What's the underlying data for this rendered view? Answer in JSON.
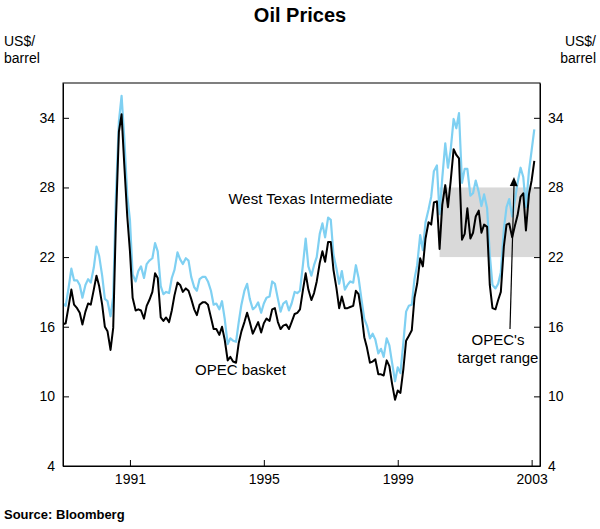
{
  "chart_data": {
    "type": "line",
    "title": "Oil Prices",
    "source": "Source: Bloomberg",
    "y_label": [
      "US$/",
      "barrel"
    ],
    "y2_label": [
      "US$/",
      "barrel"
    ],
    "grid": false,
    "xlim": [
      1989,
      2003.25
    ],
    "xticks": [
      1991,
      1995,
      1999,
      2003
    ],
    "ylim": [
      4,
      37
    ],
    "yticks": [
      4,
      10,
      16,
      22,
      28,
      34
    ],
    "y2lim": [
      4,
      37
    ],
    "y2ticks": [
      4,
      10,
      16,
      22,
      28,
      34
    ],
    "x": [
      1989.0,
      1989.08,
      1989.17,
      1989.25,
      1989.33,
      1989.42,
      1989.5,
      1989.58,
      1989.67,
      1989.75,
      1989.83,
      1989.92,
      1990.0,
      1990.08,
      1990.17,
      1990.25,
      1990.33,
      1990.42,
      1990.5,
      1990.58,
      1990.67,
      1990.75,
      1990.83,
      1990.92,
      1991.0,
      1991.08,
      1991.17,
      1991.25,
      1991.33,
      1991.42,
      1991.5,
      1991.58,
      1991.67,
      1991.75,
      1991.83,
      1991.92,
      1992.0,
      1992.08,
      1992.17,
      1992.25,
      1992.33,
      1992.42,
      1992.5,
      1992.58,
      1992.67,
      1992.75,
      1992.83,
      1992.92,
      1993.0,
      1993.08,
      1993.17,
      1993.25,
      1993.33,
      1993.42,
      1993.5,
      1993.58,
      1993.67,
      1993.75,
      1993.83,
      1993.92,
      1994.0,
      1994.08,
      1994.17,
      1994.25,
      1994.33,
      1994.42,
      1994.5,
      1994.58,
      1994.67,
      1994.75,
      1994.83,
      1994.92,
      1995.0,
      1995.08,
      1995.17,
      1995.25,
      1995.33,
      1995.42,
      1995.5,
      1995.58,
      1995.67,
      1995.75,
      1995.83,
      1995.92,
      1996.0,
      1996.08,
      1996.17,
      1996.25,
      1996.33,
      1996.42,
      1996.5,
      1996.58,
      1996.67,
      1996.75,
      1996.83,
      1996.92,
      1997.0,
      1997.08,
      1997.17,
      1997.25,
      1997.33,
      1997.42,
      1997.5,
      1997.58,
      1997.67,
      1997.75,
      1997.83,
      1997.92,
      1998.0,
      1998.08,
      1998.17,
      1998.25,
      1998.33,
      1998.42,
      1998.5,
      1998.58,
      1998.67,
      1998.75,
      1998.83,
      1998.92,
      1999.0,
      1999.08,
      1999.17,
      1999.25,
      1999.33,
      1999.42,
      1999.5,
      1999.58,
      1999.67,
      1999.75,
      1999.83,
      1999.92,
      2000.0,
      2000.08,
      2000.17,
      2000.25,
      2000.33,
      2000.42,
      2000.5,
      2000.58,
      2000.67,
      2000.75,
      2000.83,
      2000.92,
      2001.0,
      2001.08,
      2001.17,
      2001.25,
      2001.33,
      2001.42,
      2001.5,
      2001.58,
      2001.67,
      2001.75,
      2001.83,
      2001.92,
      2002.0,
      2002.08,
      2002.17,
      2002.25,
      2002.33,
      2002.42,
      2002.5,
      2002.58,
      2002.67,
      2002.75,
      2002.83,
      2002.92,
      2003.0,
      2003.08
    ],
    "series": [
      {
        "name": "West Texas Intermediate",
        "color": "#7fd0f2",
        "line_style": "solid",
        "values": [
          18.0,
          17.8,
          19.4,
          21.0,
          20.0,
          20.0,
          19.6,
          18.5,
          19.6,
          20.1,
          19.8,
          21.1,
          22.9,
          22.1,
          20.4,
          18.4,
          18.2,
          16.9,
          18.6,
          27.2,
          33.7,
          35.9,
          32.3,
          27.3,
          25.2,
          20.5,
          19.9,
          20.8,
          21.2,
          20.2,
          21.4,
          21.7,
          21.9,
          23.2,
          22.5,
          19.5,
          18.8,
          19.0,
          18.9,
          20.2,
          20.9,
          22.4,
          21.8,
          21.4,
          21.9,
          21.7,
          20.3,
          19.4,
          19.1,
          20.1,
          20.3,
          20.3,
          19.9,
          19.1,
          17.9,
          18.0,
          17.5,
          18.2,
          16.7,
          14.5,
          15.0,
          14.8,
          14.7,
          16.4,
          17.9,
          19.1,
          19.7,
          18.4,
          17.5,
          17.7,
          18.1,
          17.2,
          18.0,
          18.5,
          18.6,
          19.9,
          19.7,
          18.4,
          17.3,
          18.0,
          18.2,
          17.4,
          18.0,
          19.0,
          18.9,
          19.1,
          21.4,
          23.6,
          21.2,
          20.4,
          21.3,
          22.0,
          24.0,
          24.9,
          23.7,
          25.4,
          25.2,
          22.2,
          21.0,
          19.7,
          20.8,
          19.2,
          19.6,
          19.9,
          19.8,
          21.3,
          20.2,
          18.3,
          16.7,
          16.1,
          15.0,
          15.4,
          14.9,
          13.7,
          14.1,
          13.4,
          15.0,
          14.4,
          12.9,
          11.3,
          12.5,
          12.0,
          14.7,
          17.3,
          17.8,
          17.9,
          20.1,
          21.3,
          23.9,
          22.6,
          25.0,
          26.1,
          27.2,
          29.4,
          29.9,
          25.7,
          28.8,
          31.8,
          29.7,
          31.2,
          33.9,
          33.1,
          34.4,
          28.4,
          29.6,
          29.6,
          27.3,
          27.5,
          28.6,
          27.6,
          26.4,
          27.4,
          26.2,
          22.2,
          19.6,
          19.3,
          19.7,
          20.7,
          24.4,
          26.3,
          27.0,
          25.5,
          26.9,
          28.4,
          29.7,
          28.9,
          26.3,
          29.4,
          31.2,
          33.0
        ]
      },
      {
        "name": "OPEC basket",
        "color": "#000000",
        "line_style": "solid",
        "values": [
          16.2,
          16.3,
          17.8,
          19.2,
          17.9,
          17.6,
          17.2,
          16.2,
          17.3,
          18.0,
          17.9,
          19.2,
          20.4,
          19.5,
          17.9,
          16.0,
          15.6,
          14.0,
          15.9,
          25.0,
          32.8,
          34.3,
          30.0,
          25.5,
          22.5,
          18.5,
          17.4,
          17.5,
          17.4,
          16.7,
          17.8,
          18.3,
          19.0,
          20.6,
          20.2,
          16.8,
          16.5,
          16.8,
          16.4,
          17.4,
          18.7,
          19.8,
          19.6,
          19.0,
          19.3,
          19.1,
          18.4,
          17.5,
          17.0,
          17.9,
          18.1,
          18.1,
          17.9,
          16.8,
          15.8,
          15.8,
          15.3,
          16.0,
          14.9,
          13.1,
          13.4,
          13.0,
          12.9,
          14.6,
          15.6,
          16.4,
          17.2,
          16.4,
          15.4,
          15.9,
          16.4,
          15.5,
          16.3,
          16.7,
          16.5,
          17.5,
          17.6,
          16.4,
          15.8,
          16.1,
          16.2,
          15.8,
          16.4,
          17.1,
          17.2,
          17.5,
          19.2,
          20.6,
          19.2,
          18.3,
          18.9,
          19.9,
          21.5,
          22.5,
          21.6,
          23.3,
          23.3,
          20.9,
          19.3,
          17.6,
          18.6,
          17.6,
          17.6,
          17.7,
          17.8,
          19.1,
          18.8,
          17.1,
          15.1,
          14.2,
          12.9,
          13.0,
          13.2,
          11.9,
          11.9,
          11.8,
          13.1,
          12.6,
          11.1,
          9.7,
          10.5,
          10.3,
          12.4,
          14.8,
          15.2,
          15.7,
          18.5,
          19.7,
          21.9,
          21.2,
          23.6,
          25.0,
          24.8,
          26.7,
          26.8,
          22.7,
          26.5,
          28.2,
          26.3,
          28.5,
          31.3,
          30.8,
          30.5,
          23.5,
          24.0,
          26.2,
          23.6,
          24.1,
          25.5,
          26.0,
          24.1,
          24.8,
          24.6,
          19.6,
          17.6,
          17.5,
          18.3,
          19.0,
          22.9,
          24.8,
          24.9,
          23.7,
          24.7,
          25.6,
          27.2,
          27.5,
          24.3,
          27.4,
          28.6,
          30.3
        ]
      }
    ],
    "annotations": [
      {
        "text": [
          "OPEC's",
          "target range"
        ],
        "x": [
          2000.25,
          2003.25
        ],
        "y": [
          22,
          28
        ],
        "color": "#d9d9d9"
      }
    ]
  }
}
